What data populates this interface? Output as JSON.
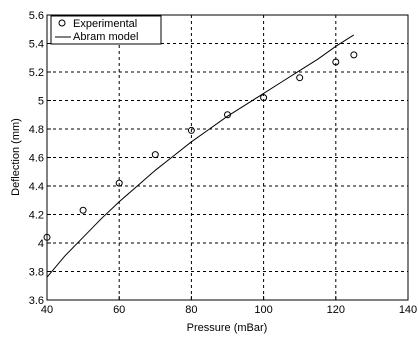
{
  "chart_data": {
    "type": "scatter",
    "title": "",
    "xlabel": "Pressure (mBar)",
    "ylabel": "Deflection (mm)",
    "xlim": [
      40,
      140
    ],
    "ylim": [
      3.6,
      5.6
    ],
    "xticks": [
      40,
      60,
      80,
      100,
      120,
      140
    ],
    "yticks": [
      3.6,
      3.8,
      4.0,
      4.2,
      4.4,
      4.6,
      4.8,
      5.0,
      5.2,
      5.4,
      5.6
    ],
    "xtick_labels": [
      "40",
      "60",
      "80",
      "100",
      "120",
      "140"
    ],
    "ytick_labels": [
      "3.6",
      "3.8",
      "4",
      "4.2",
      "4.4",
      "4.6",
      "4.8",
      "5",
      "5.2",
      "5.4",
      "5.6"
    ],
    "grid": true,
    "legend_position": "top-left",
    "series": [
      {
        "name": "Experimental",
        "type": "scatter",
        "marker": "circle-open",
        "x": [
          40,
          50,
          60,
          70,
          80,
          90,
          100,
          110,
          120,
          125
        ],
        "y": [
          4.04,
          4.23,
          4.42,
          4.62,
          4.79,
          4.9,
          5.02,
          5.16,
          5.27,
          5.32
        ]
      },
      {
        "name": "Abram model",
        "type": "line",
        "x": [
          40,
          45,
          50,
          55,
          60,
          65,
          70,
          75,
          80,
          85,
          90,
          95,
          100,
          105,
          110,
          115,
          120,
          125
        ],
        "y": [
          3.76,
          3.91,
          4.04,
          4.17,
          4.29,
          4.4,
          4.51,
          4.61,
          4.71,
          4.8,
          4.89,
          4.97,
          5.05,
          5.13,
          5.21,
          5.29,
          5.38,
          5.46
        ]
      }
    ]
  }
}
